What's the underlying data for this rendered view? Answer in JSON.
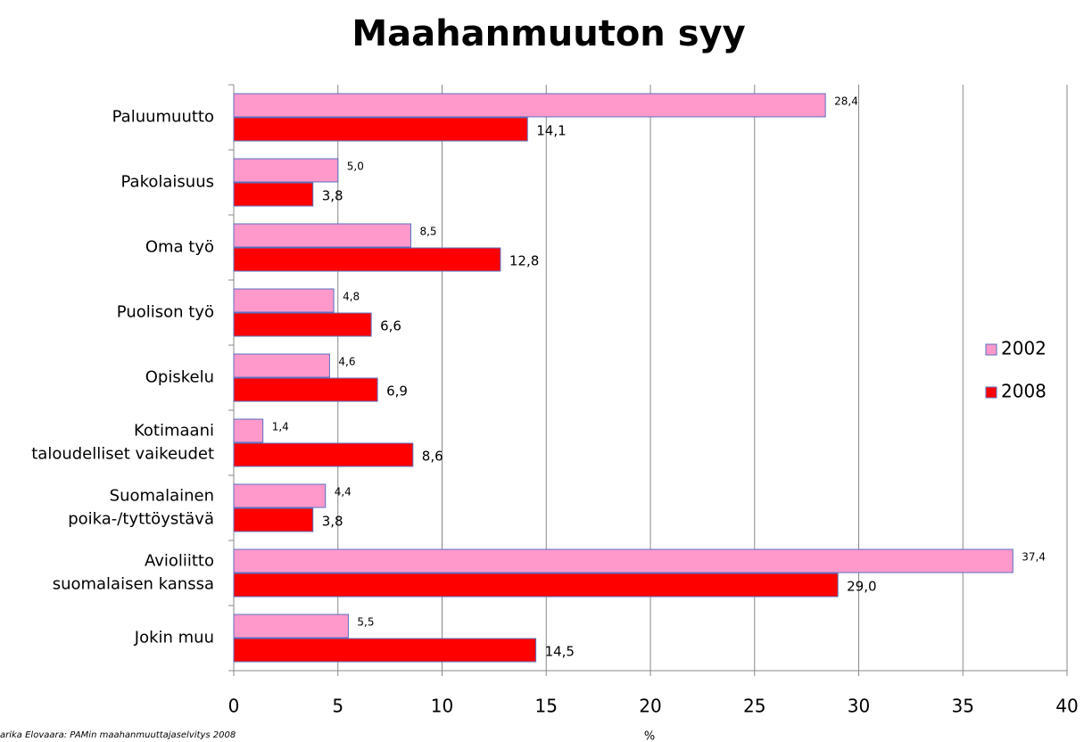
{
  "chart_data": {
    "type": "bar",
    "orientation": "horizontal",
    "title": "Maahanmuuton syy",
    "x_label": "%",
    "source": "arika Elovaara: PAMin maahanmuuttajaselvitys 2008",
    "categories": [
      "Paluumuutto",
      "Pakolaisuus",
      "Oma työ",
      "Puolison työ",
      "Opiskelu",
      "Kotimaani\ntaloudelliset vaikeudet",
      "Suomalainen\npoika-/tyttöystävä",
      "Avioliitto\nsuomalaisen kanssa",
      "Jokin muu"
    ],
    "series": [
      {
        "name": "2002",
        "color": "#ff99cc",
        "values": [
          28.4,
          5.0,
          8.5,
          4.8,
          4.6,
          1.4,
          4.4,
          37.4,
          5.5
        ],
        "value_labels": [
          "28,4",
          "5,0",
          "8,5",
          "4,8",
          "4,6",
          "1,4",
          "4,4",
          "37,4",
          "5,5"
        ]
      },
      {
        "name": "2008",
        "color": "#ff0000",
        "values": [
          14.1,
          3.8,
          12.8,
          6.6,
          6.9,
          8.6,
          3.8,
          29.0,
          14.5
        ],
        "value_labels": [
          "14,1",
          "3,8",
          "12,8",
          "6,6",
          "6,9",
          "8,6",
          "3,8",
          "29,0",
          "14,5"
        ]
      }
    ],
    "xlim": [
      0,
      40
    ],
    "xticks": [
      0,
      5,
      10,
      15,
      20,
      25,
      30,
      35,
      40
    ],
    "grid": true,
    "legend": "right"
  }
}
